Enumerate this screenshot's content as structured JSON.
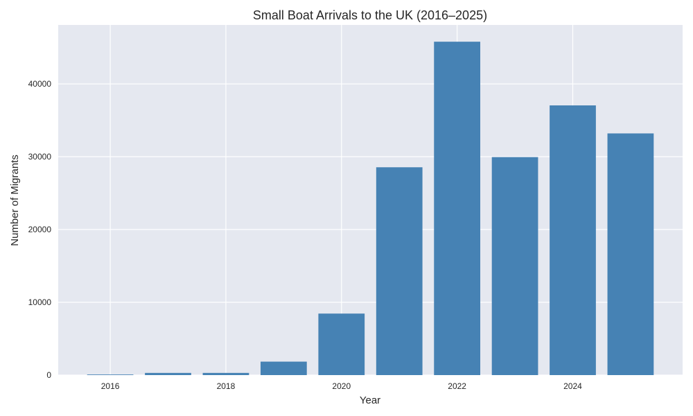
{
  "chart_data": {
    "type": "bar",
    "title": "Small Boat Arrivals to the UK (2016–2025)",
    "xlabel": "Year",
    "ylabel": "Number of Migrants",
    "categories": [
      2016,
      2017,
      2018,
      2019,
      2020,
      2021,
      2022,
      2023,
      2024,
      2025
    ],
    "values": [
      80,
      300,
      300,
      1850,
      8450,
      28550,
      45800,
      29950,
      37050,
      33200
    ],
    "x_ticks": [
      2016,
      2018,
      2020,
      2022,
      2024
    ],
    "y_ticks": [
      0,
      10000,
      20000,
      30000,
      40000
    ],
    "xlim": [
      2015.1,
      2025.9
    ],
    "ylim": [
      0,
      48100
    ],
    "grid": true,
    "legend": "none",
    "colors": {
      "bar": "#4682b4",
      "plot_background": "#e5e8f0",
      "grid": "#ffffff"
    }
  }
}
